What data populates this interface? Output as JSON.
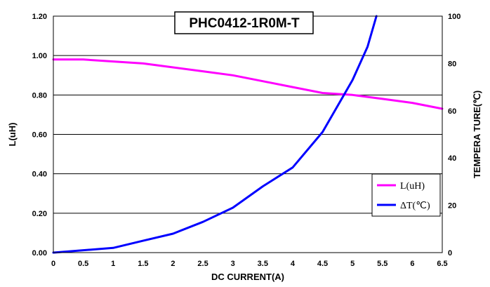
{
  "chart_data": {
    "type": "line",
    "title": "PHC0412-1R0M-T",
    "xlabel": "DC CURRENT(A)",
    "ylabel_left": "L(uH)",
    "ylabel_right": "TEMPERA TURE(℃)",
    "xlim": [
      0,
      6.5
    ],
    "ylim_left": [
      0,
      1.2
    ],
    "ylim_right": [
      0,
      100
    ],
    "x_ticks": [
      "0",
      "0.5",
      "1",
      "1.5",
      "2",
      "2.5",
      "3",
      "3.5",
      "4",
      "4.5",
      "5",
      "5.5",
      "6",
      "6.5"
    ],
    "y_left_ticks": [
      "0.00",
      "0.20",
      "0.40",
      "0.60",
      "0.80",
      "1.00",
      "1.20"
    ],
    "y_right_ticks": [
      "0",
      "20",
      "40",
      "60",
      "80",
      "100"
    ],
    "grid": "horizontal",
    "legend_placement": "bottom-right",
    "series": [
      {
        "name": "L(uH)",
        "axis": "left",
        "color": "#ff00ff",
        "x": [
          0,
          0.5,
          1,
          1.5,
          2,
          2.5,
          3,
          3.5,
          4,
          4.5,
          5,
          5.5,
          6,
          6.5
        ],
        "values": [
          0.98,
          0.98,
          0.97,
          0.96,
          0.94,
          0.92,
          0.9,
          0.87,
          0.84,
          0.81,
          0.8,
          0.78,
          0.76,
          0.73
        ]
      },
      {
        "name": "ΔT(℃)",
        "axis": "right",
        "color": "#0000ff",
        "x": [
          0,
          0.5,
          1,
          1.5,
          2,
          2.5,
          3,
          3.5,
          4,
          4.5,
          5,
          5.25,
          5.4
        ],
        "values": [
          0,
          1,
          2,
          5,
          8,
          13,
          19,
          28,
          36,
          51,
          73,
          87,
          100
        ]
      }
    ]
  }
}
